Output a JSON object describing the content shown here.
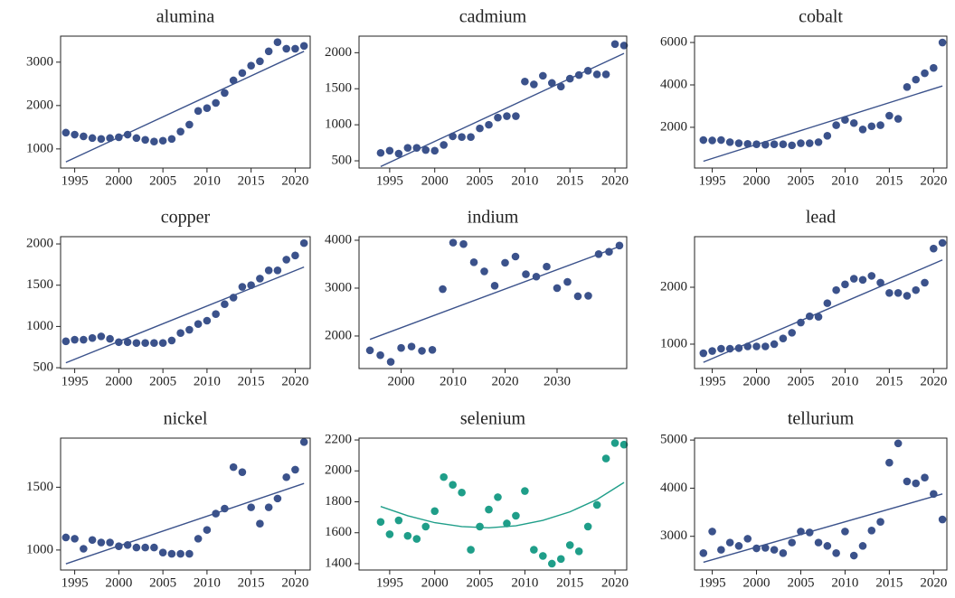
{
  "chart_data": [
    {
      "type": "scatter",
      "title": "alumina",
      "color": "#3b528b",
      "x": [
        1994,
        1995,
        1996,
        1997,
        1998,
        1999,
        2000,
        2001,
        2002,
        2003,
        2004,
        2005,
        2006,
        2007,
        2008,
        2009,
        2010,
        2011,
        2012,
        2013,
        2014,
        2015,
        2016,
        2017,
        2018,
        2019,
        2020,
        2021
      ],
      "values": [
        1375,
        1330,
        1290,
        1250,
        1230,
        1250,
        1270,
        1330,
        1250,
        1210,
        1170,
        1190,
        1230,
        1400,
        1560,
        1875,
        1940,
        2060,
        2290,
        2580,
        2750,
        2920,
        3020,
        3250,
        3460,
        3310,
        3310,
        3375
      ],
      "fit": {
        "x": [
          1994,
          2021
        ],
        "values": [
          700,
          3250
        ]
      },
      "xlim": [
        1993.4,
        2021.7
      ],
      "ylim": [
        560,
        3600
      ],
      "xticks": [
        1995,
        2000,
        2005,
        2010,
        2015,
        2020
      ],
      "yticks": [
        1000,
        2000,
        3000
      ]
    },
    {
      "type": "scatter",
      "title": "cadmium",
      "color": "#3b528b",
      "x": [
        1994,
        1995,
        1996,
        1997,
        1998,
        1999,
        2000,
        2001,
        2002,
        2003,
        2004,
        2005,
        2006,
        2007,
        2008,
        2009,
        2010,
        2011,
        2012,
        2013,
        2014,
        2015,
        2016,
        2017,
        2018,
        2019,
        2020,
        2021
      ],
      "values": [
        610,
        640,
        600,
        680,
        680,
        650,
        640,
        720,
        840,
        830,
        830,
        950,
        1000,
        1100,
        1120,
        1120,
        1600,
        1560,
        1680,
        1580,
        1530,
        1640,
        1690,
        1750,
        1700,
        1700,
        2120,
        2100
      ],
      "fit": {
        "x": [
          1994,
          2021
        ],
        "values": [
          420,
          1990
        ]
      },
      "xlim": [
        1991.6,
        2021.3
      ],
      "ylim": [
        400,
        2230
      ],
      "xticks": [
        1995,
        2000,
        2005,
        2010,
        2015,
        2020
      ],
      "yticks": [
        500,
        1000,
        1500,
        2000
      ]
    },
    {
      "type": "scatter",
      "title": "cobalt",
      "color": "#3b528b",
      "x": [
        1994,
        1995,
        1996,
        1997,
        1998,
        1999,
        2000,
        2001,
        2002,
        2003,
        2004,
        2005,
        2006,
        2007,
        2008,
        2009,
        2010,
        2011,
        2012,
        2013,
        2014,
        2015,
        2016,
        2017,
        2018,
        2019,
        2020,
        2021
      ],
      "values": [
        1400,
        1380,
        1400,
        1300,
        1250,
        1220,
        1200,
        1180,
        1200,
        1200,
        1150,
        1250,
        1250,
        1300,
        1600,
        2100,
        2350,
        2200,
        1900,
        2050,
        2100,
        2550,
        2400,
        3900,
        4250,
        4550,
        4800,
        6000
      ],
      "fit": {
        "x": [
          1994,
          2021
        ],
        "values": [
          400,
          3950
        ]
      },
      "xlim": [
        1993.0,
        2021.5
      ],
      "ylim": [
        80,
        6300
      ],
      "xticks": [
        1995,
        2000,
        2005,
        2010,
        2015,
        2020
      ],
      "yticks": [
        2000,
        4000,
        6000
      ]
    },
    {
      "type": "scatter",
      "title": "copper",
      "color": "#3b528b",
      "x": [
        1994,
        1995,
        1996,
        1997,
        1998,
        1999,
        2000,
        2001,
        2002,
        2003,
        2004,
        2005,
        2006,
        2007,
        2008,
        2009,
        2010,
        2011,
        2012,
        2013,
        2014,
        2015,
        2016,
        2017,
        2018,
        2019,
        2020,
        2021
      ],
      "values": [
        820,
        840,
        840,
        860,
        880,
        850,
        810,
        810,
        800,
        800,
        800,
        800,
        830,
        920,
        960,
        1030,
        1070,
        1150,
        1270,
        1350,
        1480,
        1500,
        1580,
        1680,
        1680,
        1810,
        1860,
        2010
      ],
      "fit": {
        "x": [
          1994,
          2021
        ],
        "values": [
          560,
          1720
        ]
      },
      "xlim": [
        1993.4,
        2021.7
      ],
      "ylim": [
        490,
        2088
      ],
      "xticks": [
        1995,
        2000,
        2005,
        2010,
        2015,
        2020
      ],
      "yticks": [
        500,
        1000,
        1500,
        2000
      ]
    },
    {
      "type": "scatter",
      "title": "indium",
      "color": "#3b528b",
      "x": [
        1994,
        1996,
        1998,
        2000,
        2002,
        2004,
        2006,
        2008,
        2010,
        2012,
        2014,
        2016,
        2018,
        2020,
        2022,
        2024,
        2026,
        2028,
        2030,
        2032,
        2034,
        2036,
        2038,
        2040,
        2042
      ],
      "values": [
        1700,
        1600,
        1460,
        1750,
        1780,
        1690,
        1710,
        2980,
        3950,
        3920,
        3540,
        3350,
        3050,
        3530,
        3660,
        3290,
        3240,
        3450,
        3000,
        3130,
        2830,
        2840,
        3710,
        3760,
        3890
      ],
      "fit": {
        "x": [
          1994,
          2042
        ],
        "values": [
          1930,
          3870
        ]
      },
      "xlim": [
        1991.9,
        2043.4
      ],
      "ylim": [
        1320,
        4075
      ],
      "xticks": [
        2000,
        2010,
        2020,
        2030
      ],
      "yticks": [
        2000,
        3000,
        4000
      ]
    },
    {
      "type": "scatter",
      "title": "lead",
      "color": "#3b528b",
      "x": [
        1994,
        1995,
        1996,
        1997,
        1998,
        1999,
        2000,
        2001,
        2002,
        2003,
        2004,
        2005,
        2006,
        2007,
        2008,
        2009,
        2010,
        2011,
        2012,
        2013,
        2014,
        2015,
        2016,
        2017,
        2018,
        2019,
        2020,
        2021
      ],
      "values": [
        840,
        880,
        920,
        920,
        930,
        960,
        960,
        960,
        1000,
        1100,
        1200,
        1380,
        1490,
        1480,
        1720,
        1950,
        2050,
        2150,
        2130,
        2200,
        2080,
        1900,
        1900,
        1850,
        1950,
        2080,
        2680,
        2780
      ],
      "fit": {
        "x": [
          1994,
          2021
        ],
        "values": [
          680,
          2480
        ]
      },
      "xlim": [
        1993.0,
        2021.5
      ],
      "ylim": [
        571,
        2889
      ],
      "xticks": [
        1995,
        2000,
        2005,
        2010,
        2015,
        2020
      ],
      "yticks": [
        1000,
        2000
      ]
    },
    {
      "type": "scatter",
      "title": "nickel",
      "color": "#3b528b",
      "x": [
        1994,
        1995,
        1996,
        1997,
        1998,
        1999,
        2000,
        2001,
        2002,
        2003,
        2004,
        2005,
        2006,
        2007,
        2008,
        2009,
        2010,
        2011,
        2012,
        2013,
        2014,
        2015,
        2016,
        2017,
        2018,
        2019,
        2020,
        2021
      ],
      "values": [
        1100,
        1090,
        1010,
        1080,
        1060,
        1060,
        1030,
        1040,
        1020,
        1020,
        1020,
        980,
        970,
        970,
        970,
        1090,
        1160,
        1290,
        1330,
        1660,
        1620,
        1340,
        1210,
        1340,
        1410,
        1580,
        1640,
        1860
      ],
      "fit": {
        "x": [
          1994,
          2021
        ],
        "values": [
          890,
          1530
        ]
      },
      "xlim": [
        1993.4,
        2021.7
      ],
      "ylim": [
        841,
        1891
      ],
      "xticks": [
        1995,
        2000,
        2005,
        2010,
        2015,
        2020
      ],
      "yticks": [
        1000,
        1500
      ]
    },
    {
      "type": "scatter",
      "title": "selenium",
      "color": "#1f9e89",
      "x": [
        1994,
        1995,
        1996,
        1997,
        1998,
        1999,
        2000,
        2001,
        2002,
        2003,
        2004,
        2005,
        2006,
        2007,
        2008,
        2009,
        2010,
        2011,
        2012,
        2013,
        2014,
        2015,
        2016,
        2017,
        2018,
        2019,
        2020,
        2021
      ],
      "values": [
        1670,
        1590,
        1680,
        1580,
        1560,
        1640,
        1740,
        1960,
        1910,
        1860,
        1490,
        1640,
        1750,
        1830,
        1660,
        1710,
        1870,
        1490,
        1450,
        1400,
        1430,
        1520,
        1480,
        1640,
        1780,
        2080,
        2180,
        2170
      ],
      "fit": {
        "x": [
          1994,
          1997,
          2000,
          2003,
          2006,
          2009,
          2012,
          2015,
          2018,
          2021
        ],
        "values": [
          1770,
          1710,
          1665,
          1640,
          1632,
          1645,
          1680,
          1735,
          1815,
          1925
        ]
      },
      "xlim": [
        1991.6,
        2021.3
      ],
      "ylim": [
        1359,
        2212
      ],
      "xticks": [
        1995,
        2000,
        2005,
        2010,
        2015,
        2020
      ],
      "yticks": [
        1400,
        1600,
        1800,
        2000,
        2200
      ]
    },
    {
      "type": "scatter",
      "title": "tellurium",
      "color": "#3b528b",
      "x": [
        1994,
        1995,
        1996,
        1997,
        1998,
        1999,
        2000,
        2001,
        2002,
        2003,
        2004,
        2005,
        2006,
        2007,
        2008,
        2009,
        2010,
        2011,
        2012,
        2013,
        2014,
        2015,
        2016,
        2017,
        2018,
        2019,
        2020,
        2021
      ],
      "values": [
        2650,
        3100,
        2720,
        2870,
        2800,
        2950,
        2750,
        2760,
        2720,
        2650,
        2870,
        3100,
        3080,
        2870,
        2800,
        2650,
        3100,
        2600,
        2800,
        3120,
        3300,
        4530,
        4930,
        4140,
        4100,
        4220,
        3880,
        3350
      ],
      "fit": {
        "x": [
          1994,
          2021
        ],
        "values": [
          2460,
          3880
        ]
      },
      "xlim": [
        1993.0,
        2021.5
      ],
      "ylim": [
        2300,
        5040
      ],
      "xticks": [
        1995,
        2000,
        2005,
        2010,
        2015,
        2020
      ],
      "yticks": [
        3000,
        4000,
        5000
      ]
    }
  ]
}
